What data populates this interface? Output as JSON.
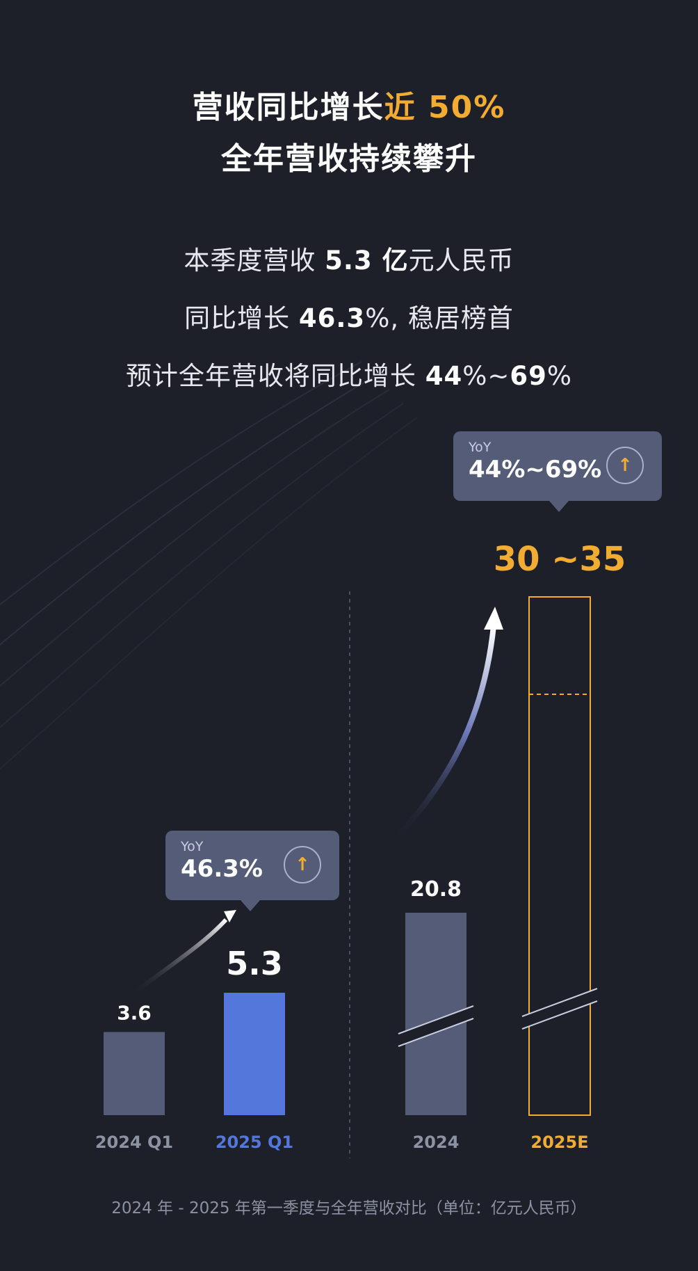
{
  "headline": {
    "line1_main": "营收同比增长",
    "line1_accent": "近 50%",
    "line2": "全年营收持续攀升"
  },
  "stats": [
    {
      "pre": "本季度营收 ",
      "bold": "5.3 亿",
      "post": "元人民币"
    },
    {
      "pre": "同比增长 ",
      "bold": "46.3",
      "post": "%, 稳居榜首"
    },
    {
      "pre": "预计全年营收将同比增长 ",
      "bold": "44",
      "mid": "%~",
      "bold2": "69",
      "post": "%"
    }
  ],
  "tooltips": {
    "quarter": {
      "label": "YoY",
      "value": "46.3%",
      "icon": "arrow-up-icon"
    },
    "annual": {
      "label": "YoY",
      "value": "44%~69%",
      "icon": "arrow-up-icon"
    }
  },
  "chart_data": {
    "type": "bar",
    "unit": "亿元人民币",
    "groups": [
      {
        "name": "quarter",
        "bars": [
          {
            "category": "2024 Q1",
            "value": 3.6,
            "label": "3.6"
          },
          {
            "category": "2025 Q1",
            "value": 5.3,
            "label": "5.3"
          }
        ]
      },
      {
        "name": "annual",
        "bars": [
          {
            "category": "2024",
            "value": 20.8,
            "label": "20.8"
          },
          {
            "category": "2025E",
            "value_range": [
              30,
              35
            ],
            "label": "30 ~35"
          }
        ]
      }
    ],
    "axis_break": true,
    "colors": {
      "base_bar": "#545c78",
      "highlight_bar": "#5477dc",
      "estimate_outline": "#f2ac32",
      "category_label": "#8d92a3",
      "highlight_label": "#5477dc",
      "estimate_label": "#f2ac32"
    }
  },
  "caption": "2024 年 - 2025 年第一季度与全年营收对比（单位：亿元人民币）"
}
